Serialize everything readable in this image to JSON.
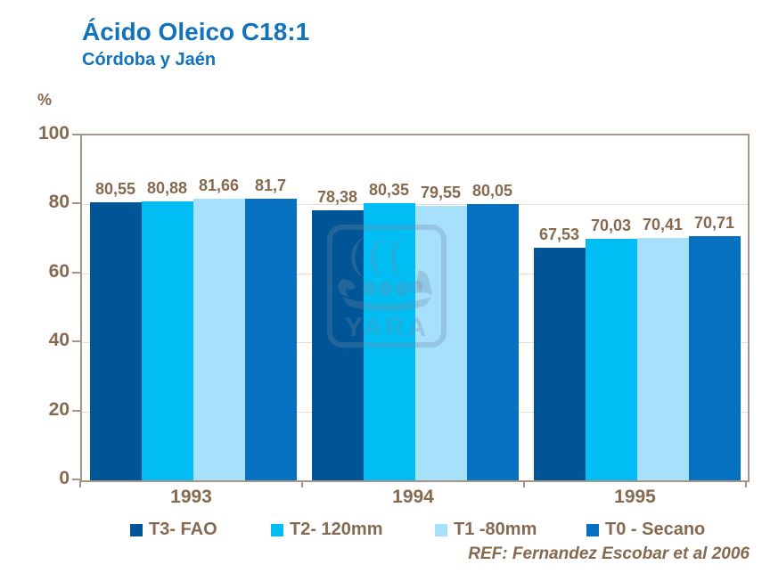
{
  "header": {
    "title": "Ácido Oleico C18:1",
    "subtitle": "Córdoba y Jaén"
  },
  "chart_data": {
    "type": "bar",
    "title": "Ácido Oleico C18:1",
    "subtitle": "Córdoba y Jaén",
    "ylabel": "%",
    "xlabel": "",
    "ylim": [
      0,
      100
    ],
    "yticks": [
      0,
      20,
      40,
      60,
      80,
      100
    ],
    "grid": "horizontal",
    "legend_position": "bottom",
    "decimal_separator": ",",
    "categories": [
      "1993",
      "1994",
      "1995"
    ],
    "series": [
      {
        "name": "T3- FAO",
        "color": "#005596",
        "values": [
          80.55,
          78.38,
          67.53
        ]
      },
      {
        "name": "T2- 120mm",
        "color": "#00BEF3",
        "values": [
          80.88,
          80.35,
          70.03
        ]
      },
      {
        "name": "T1 -80mm",
        "color": "#A6E0FA",
        "values": [
          81.66,
          79.55,
          70.41
        ]
      },
      {
        "name": "T0 - Secano",
        "color": "#0571C0",
        "values": [
          81.7,
          80.05,
          70.71
        ]
      }
    ]
  },
  "watermark": {
    "text": "YARA",
    "icon": "viking-ship-logo"
  },
  "footer": {
    "ref": "REF: Fernandez Escobar et al 2006"
  },
  "colors": {
    "title_blue": "#1272BC",
    "text_brown": "#856A50",
    "frame": "#A79685",
    "gridline": "#E9DCD3",
    "background": "#FFFFFF",
    "watermark": "#6E8CA8"
  }
}
